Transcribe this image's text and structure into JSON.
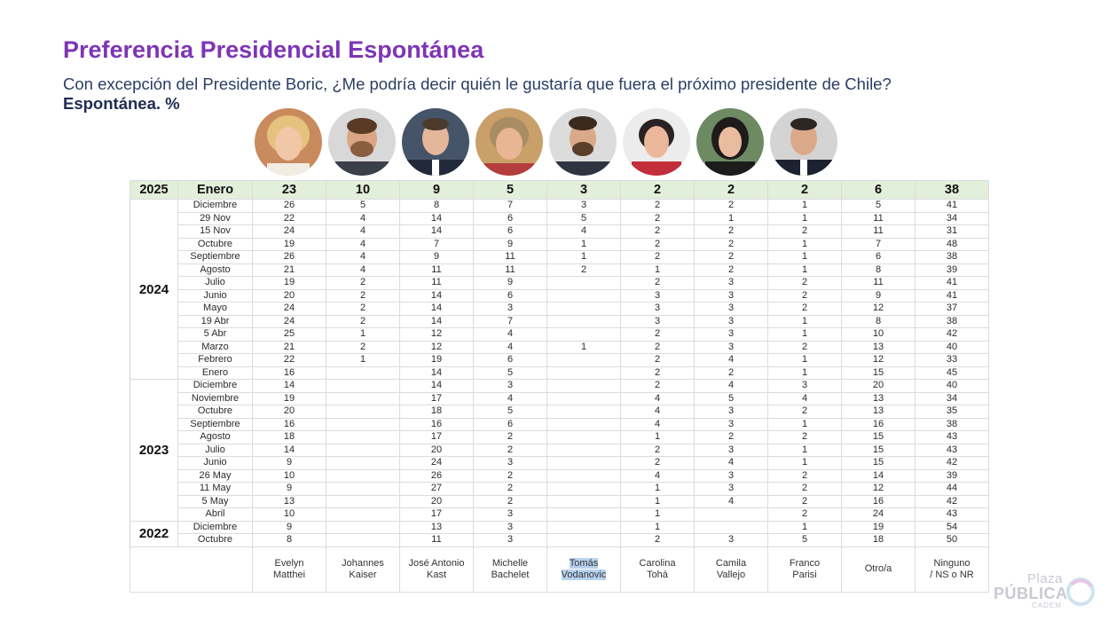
{
  "title": "Preferencia Presidencial Espontánea",
  "subtitle": "Con excepción del Presidente Boric, ¿Me podría decir quién le gustaría que fuera el próximo presidente de Chile?",
  "subtitle2": "Espontánea. %",
  "candidates": [
    {
      "line1": "Evelyn",
      "line2": "Matthei"
    },
    {
      "line1": "Johannes",
      "line2": "Kaiser"
    },
    {
      "line1": "José Antonio",
      "line2": "Kast"
    },
    {
      "line1": "Michelle",
      "line2": "Bachelet"
    },
    {
      "line1": "Tomás",
      "line2": "Vodanovic"
    },
    {
      "line1": "Carolina",
      "line2": "Tohá"
    },
    {
      "line1": "Camila",
      "line2": "Vallejo"
    },
    {
      "line1": "Franco",
      "line2": "Parisi"
    },
    {
      "line1": "Otro/a",
      "line2": ""
    },
    {
      "line1": "Ninguno",
      "line2": "/ NS o NR"
    }
  ],
  "header_row": {
    "year": "2025",
    "month": "Enero",
    "values": [
      "23",
      "10",
      "9",
      "5",
      "3",
      "2",
      "2",
      "2",
      "6",
      "38"
    ]
  },
  "year_groups": [
    {
      "year": "2024",
      "rows": [
        {
          "month": "Diciembre",
          "values": [
            "26",
            "5",
            "8",
            "7",
            "3",
            "2",
            "2",
            "1",
            "5",
            "41"
          ]
        },
        {
          "month": "29 Nov",
          "values": [
            "22",
            "4",
            "14",
            "6",
            "5",
            "2",
            "1",
            "1",
            "11",
            "34"
          ]
        },
        {
          "month": "15 Nov",
          "values": [
            "24",
            "4",
            "14",
            "6",
            "4",
            "2",
            "2",
            "2",
            "11",
            "31"
          ]
        },
        {
          "month": "Octubre",
          "values": [
            "19",
            "4",
            "7",
            "9",
            "1",
            "2",
            "2",
            "1",
            "7",
            "48"
          ]
        },
        {
          "month": "Septiembre",
          "values": [
            "26",
            "4",
            "9",
            "11",
            "1",
            "2",
            "2",
            "1",
            "6",
            "38"
          ]
        },
        {
          "month": "Agosto",
          "values": [
            "21",
            "4",
            "11",
            "11",
            "2",
            "1",
            "2",
            "1",
            "8",
            "39"
          ]
        },
        {
          "month": "Julio",
          "values": [
            "19",
            "2",
            "11",
            "9",
            "",
            "2",
            "3",
            "2",
            "11",
            "41"
          ]
        },
        {
          "month": "Junio",
          "values": [
            "20",
            "2",
            "14",
            "6",
            "",
            "3",
            "3",
            "2",
            "9",
            "41"
          ]
        },
        {
          "month": "Mayo",
          "values": [
            "24",
            "2",
            "14",
            "3",
            "",
            "3",
            "3",
            "2",
            "12",
            "37"
          ]
        },
        {
          "month": "19 Abr",
          "values": [
            "24",
            "2",
            "14",
            "7",
            "",
            "3",
            "3",
            "1",
            "8",
            "38"
          ]
        },
        {
          "month": "5 Abr",
          "values": [
            "25",
            "1",
            "12",
            "4",
            "",
            "2",
            "3",
            "1",
            "10",
            "42"
          ]
        },
        {
          "month": "Marzo",
          "values": [
            "21",
            "2",
            "12",
            "4",
            "1",
            "2",
            "3",
            "2",
            "13",
            "40"
          ]
        },
        {
          "month": "Febrero",
          "values": [
            "22",
            "1",
            "19",
            "6",
            "",
            "2",
            "4",
            "1",
            "12",
            "33"
          ]
        },
        {
          "month": "Enero",
          "values": [
            "16",
            "",
            "14",
            "5",
            "",
            "2",
            "2",
            "1",
            "15",
            "45"
          ]
        }
      ]
    },
    {
      "year": "2023",
      "rows": [
        {
          "month": "Diciembre",
          "values": [
            "14",
            "",
            "14",
            "3",
            "",
            "2",
            "4",
            "3",
            "20",
            "40"
          ]
        },
        {
          "month": "Noviembre",
          "values": [
            "19",
            "",
            "17",
            "4",
            "",
            "4",
            "5",
            "4",
            "13",
            "34"
          ]
        },
        {
          "month": "Octubre",
          "values": [
            "20",
            "",
            "18",
            "5",
            "",
            "4",
            "3",
            "2",
            "13",
            "35"
          ]
        },
        {
          "month": "Septiembre",
          "values": [
            "16",
            "",
            "16",
            "6",
            "",
            "4",
            "3",
            "1",
            "16",
            "38"
          ]
        },
        {
          "month": "Agosto",
          "values": [
            "18",
            "",
            "17",
            "2",
            "",
            "1",
            "2",
            "2",
            "15",
            "43"
          ]
        },
        {
          "month": "Julio",
          "values": [
            "14",
            "",
            "20",
            "2",
            "",
            "2",
            "3",
            "1",
            "15",
            "43"
          ]
        },
        {
          "month": "Junio",
          "values": [
            "9",
            "",
            "24",
            "3",
            "",
            "2",
            "4",
            "1",
            "15",
            "42"
          ]
        },
        {
          "month": "26 May",
          "values": [
            "10",
            "",
            "26",
            "2",
            "",
            "4",
            "3",
            "2",
            "14",
            "39"
          ]
        },
        {
          "month": "11 May",
          "values": [
            "9",
            "",
            "27",
            "2",
            "",
            "1",
            "3",
            "2",
            "12",
            "44"
          ]
        },
        {
          "month": "5 May",
          "values": [
            "13",
            "",
            "20",
            "2",
            "",
            "1",
            "4",
            "2",
            "16",
            "42"
          ]
        },
        {
          "month": "Abril",
          "values": [
            "10",
            "",
            "17",
            "3",
            "",
            "1",
            "",
            "2",
            "24",
            "43"
          ]
        }
      ]
    },
    {
      "year": "2022",
      "rows": [
        {
          "month": "Diciembre",
          "values": [
            "9",
            "",
            "13",
            "3",
            "",
            "1",
            "",
            "1",
            "19",
            "54"
          ]
        },
        {
          "month": "Octubre",
          "values": [
            "8",
            "",
            "11",
            "3",
            "",
            "2",
            "3",
            "5",
            "18",
            "50"
          ]
        }
      ]
    }
  ],
  "logo": {
    "line1": "Plaza",
    "line2": "PÚBLICA",
    "line3": "CADEM"
  },
  "colors": {
    "title": "#7d35b5",
    "subtitle": "#2a3d63",
    "header_bg": "#e2efda",
    "highlight": "#b7d2ee"
  }
}
